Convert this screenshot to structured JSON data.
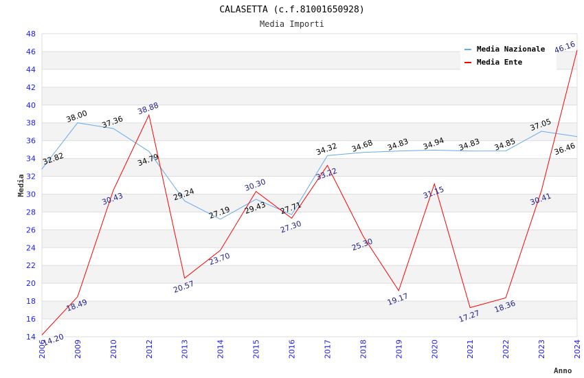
{
  "chart_data": {
    "type": "line",
    "title": "CALASETTA (c.f.81001650928)",
    "subtitle": "Media Importi",
    "xlabel": "Anno",
    "ylabel": "Media",
    "ylim": [
      14,
      48
    ],
    "ytick_step": 2,
    "grid": true,
    "legend_position": "top-right",
    "categories": [
      "2006",
      "2009",
      "2010",
      "2012",
      "2013",
      "2014",
      "2015",
      "2016",
      "2017",
      "2018",
      "2019",
      "2020",
      "2021",
      "2022",
      "2023",
      "2024"
    ],
    "series": [
      {
        "name": "Media Nazionale",
        "color": "#66aaee",
        "label_color": "#000000",
        "values": [
          32.82,
          38.0,
          37.36,
          34.79,
          29.24,
          27.19,
          29.43,
          27.71,
          34.32,
          34.68,
          34.83,
          34.94,
          34.83,
          34.85,
          37.05,
          36.46
        ]
      },
      {
        "name": "Media Ente",
        "color": "#ff0000",
        "label_color": "#22228a",
        "values": [
          14.2,
          18.49,
          30.43,
          38.88,
          20.57,
          23.7,
          30.3,
          27.3,
          33.22,
          25.3,
          19.17,
          31.15,
          17.27,
          18.36,
          30.41,
          46.16
        ]
      }
    ]
  }
}
